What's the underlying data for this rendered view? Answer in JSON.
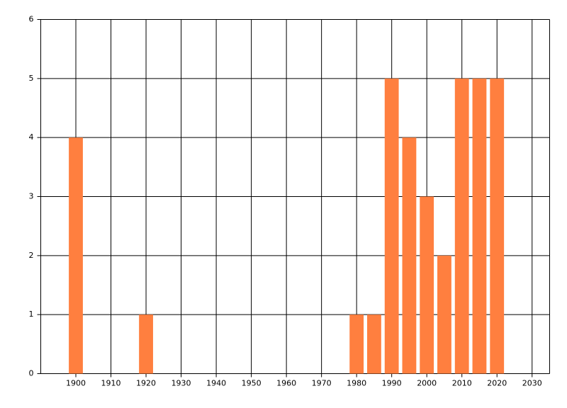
{
  "chart_data": {
    "type": "bar",
    "color": "#ff7f3f",
    "x": [
      1900,
      1920,
      1980,
      1985,
      1990,
      1995,
      2000,
      2005,
      2010,
      2015,
      2020
    ],
    "values": [
      4,
      1,
      1,
      1,
      5,
      4,
      3,
      2,
      5,
      5,
      5
    ],
    "xlim": [
      1890,
      2035
    ],
    "xticks": [
      1900,
      1910,
      1920,
      1930,
      1940,
      1950,
      1960,
      1970,
      1980,
      1990,
      2000,
      2010,
      2020,
      2030
    ],
    "ylim": [
      0,
      6
    ],
    "yticks": [
      0,
      1,
      2,
      3,
      4,
      5,
      6
    ],
    "grid": true
  }
}
